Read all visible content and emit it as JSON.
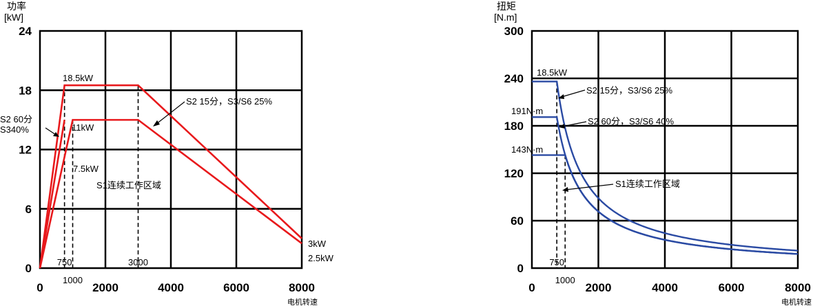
{
  "chart_data": [
    {
      "type": "line",
      "ylabel": "功率",
      "yunit": "[kW]",
      "xlabel": "电机转速",
      "xlim": [
        0,
        8000
      ],
      "ylim": [
        0,
        24
      ],
      "xticks": [
        "0",
        "2000",
        "4000",
        "6000",
        "8000"
      ],
      "yticks": [
        "0",
        "6",
        "12",
        "18",
        "24"
      ],
      "grid": true,
      "color": "#e8191c",
      "series": [
        {
          "x": [
            0,
            750,
            3000,
            8000
          ],
          "y": [
            0,
            18.5,
            18.5,
            3
          ]
        },
        {
          "x": [
            0,
            1000,
            3000,
            8000
          ],
          "y": [
            0,
            15,
            15,
            2.5
          ]
        },
        {
          "x": [
            0,
            750
          ],
          "y": [
            0,
            15
          ]
        }
      ],
      "markers": [
        {
          "label": "750",
          "x": 750
        },
        {
          "label": "1000",
          "x": 1000
        },
        {
          "label": "3000",
          "x": 3000
        }
      ],
      "annotations": {
        "top": "18.5kW",
        "mid": "11kW",
        "low": "7.5kW",
        "s2_left_1": "S2 60分",
        "s2_left_2": "S340%",
        "s2_right": "S2 15分，S3/S6 25%",
        "s1": "S1连续工作区域",
        "end1": "3kW",
        "end2": "2.5kW"
      }
    },
    {
      "type": "line",
      "ylabel": "扭矩",
      "yunit": "[N.m]",
      "xlabel": "电机转速",
      "xlim": [
        0,
        8000
      ],
      "ylim": [
        0,
        300
      ],
      "xticks": [
        "0",
        "2000",
        "4000",
        "6000",
        "8000"
      ],
      "yticks": [
        "0",
        "60",
        "120",
        "180",
        "240",
        "300"
      ],
      "grid": true,
      "color": "#2a4aa3",
      "series": [
        {
          "base_speed": 750,
          "torque": 236
        },
        {
          "base_speed": 750,
          "torque": 191
        },
        {
          "base_speed": 1000,
          "torque": 143
        }
      ],
      "markers": [
        {
          "label": "750",
          "x": 750
        },
        {
          "label": "1000",
          "x": 1000
        }
      ],
      "annotations": {
        "top": "18.5kW",
        "t191": "191N·m",
        "t143": "143N·m",
        "s2_15": "S2 15分，S3/S6 25%",
        "s2_60": "S2 60分，S3/S6 40%",
        "s1": "S1连续工作区域"
      }
    }
  ]
}
